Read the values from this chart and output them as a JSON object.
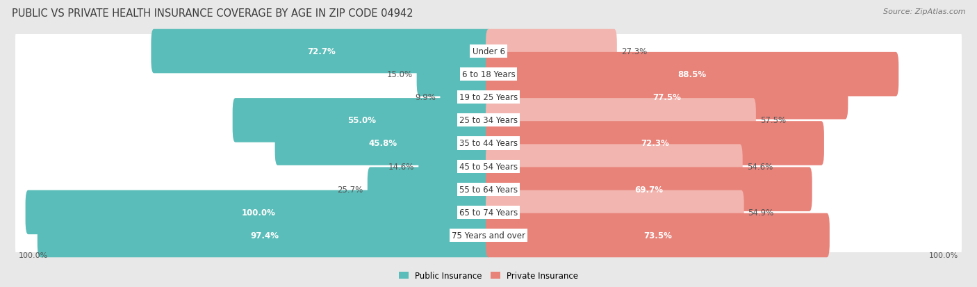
{
  "title": "PUBLIC VS PRIVATE HEALTH INSURANCE COVERAGE BY AGE IN ZIP CODE 04942",
  "source": "Source: ZipAtlas.com",
  "categories": [
    "Under 6",
    "6 to 18 Years",
    "19 to 25 Years",
    "25 to 34 Years",
    "35 to 44 Years",
    "45 to 54 Years",
    "55 to 64 Years",
    "65 to 74 Years",
    "75 Years and over"
  ],
  "public_values": [
    72.7,
    15.0,
    9.9,
    55.0,
    45.8,
    14.6,
    25.7,
    100.0,
    97.4
  ],
  "private_values": [
    27.3,
    88.5,
    77.5,
    57.5,
    72.3,
    54.6,
    69.7,
    54.9,
    73.5
  ],
  "public_color": "#5BBDB9",
  "private_color": "#E8837A",
  "private_color_light": "#F2B5AF",
  "bg_color": "#E8E8E8",
  "row_bg_color": "#F5F5F5",
  "max_value": 100.0,
  "title_fontsize": 10.5,
  "label_fontsize": 8.5,
  "cat_fontsize": 8.5,
  "source_fontsize": 8,
  "pub_inside_threshold": 30,
  "priv_inside_threshold": 60
}
